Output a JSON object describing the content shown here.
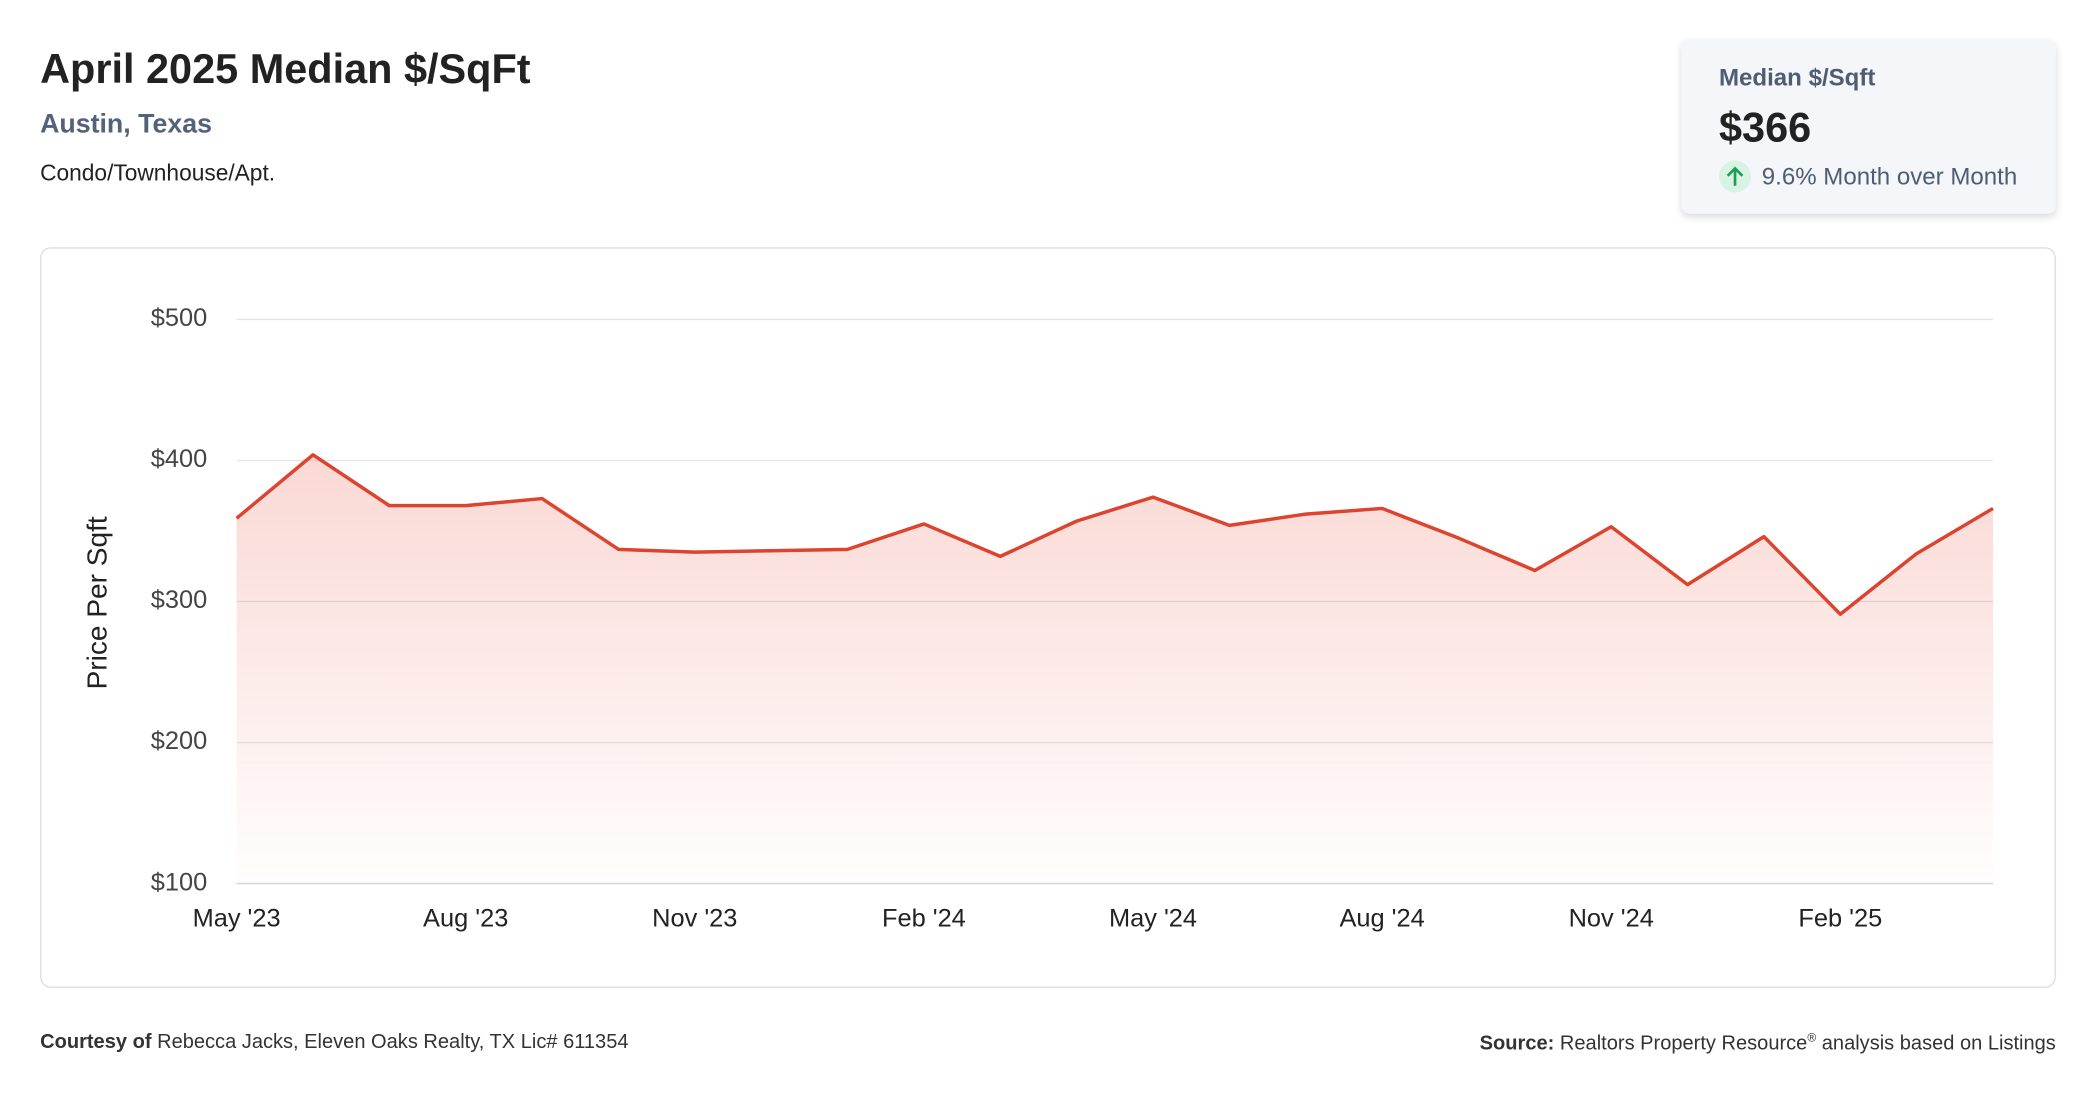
{
  "header": {
    "title": "April 2025 Median $/SqFt",
    "subtitle": "Austin, Texas",
    "property_type": "Condo/Townhouse/Apt."
  },
  "card": {
    "label": "Median $/Sqft",
    "value": "$366",
    "change": "9.6% Month over Month"
  },
  "chart_data": {
    "type": "line",
    "y_axis_label": "Price Per Sqft",
    "categories": [
      "May '23",
      null,
      null,
      "Aug '23",
      null,
      null,
      "Nov '23",
      null,
      null,
      "Feb '24",
      null,
      null,
      "May '24",
      null,
      null,
      "Aug '24",
      null,
      null,
      "Nov '24",
      null,
      null,
      "Feb '25",
      null,
      null
    ],
    "values": [
      359,
      404,
      368,
      368,
      373,
      337,
      335,
      336,
      337,
      355,
      332,
      357,
      374,
      354,
      362,
      366,
      345,
      322,
      353,
      312,
      346,
      291,
      334,
      366
    ],
    "color": "#dc4430",
    "ylim": [
      100,
      500
    ],
    "yticks": [
      {
        "value": 100,
        "label": "$100"
      },
      {
        "value": 200,
        "label": "$200"
      },
      {
        "value": 300,
        "label": "$300"
      },
      {
        "value": 400,
        "label": "$400"
      },
      {
        "value": 500,
        "label": "$500"
      }
    ],
    "grid": true
  },
  "footer": {
    "courtesy_label": "Courtesy of",
    "courtesy": "Rebecca Jacks, Eleven Oaks Realty, TX Lic# 611354",
    "source_label": "Source:",
    "source": "Realtors Property Resource",
    "source_mark": "®",
    "source_rest": " analysis based on Listings"
  }
}
